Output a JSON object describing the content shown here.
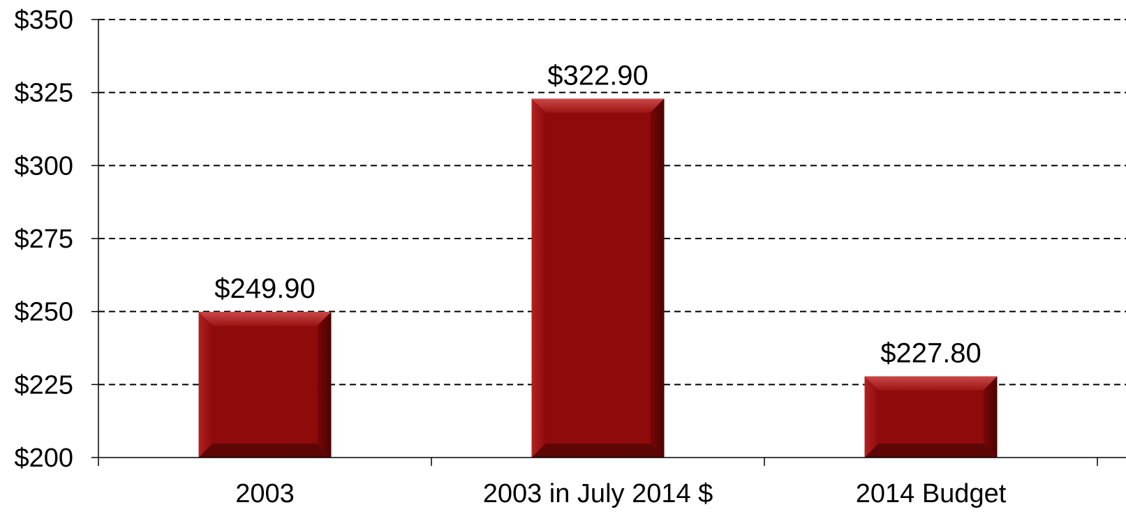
{
  "chart_data": {
    "type": "bar",
    "categories": [
      "2003",
      "2003 in July 2014 $",
      "2014 Budget"
    ],
    "values": [
      249.9,
      322.9,
      227.8
    ],
    "data_labels": [
      "$249.90",
      "$322.90",
      "$227.80"
    ],
    "ylim": [
      200,
      350
    ],
    "yticks": [
      200,
      225,
      250,
      275,
      300,
      325,
      350
    ],
    "ytick_labels": [
      "$200",
      "$225",
      "$250",
      "$275",
      "$300",
      "$325",
      "$350"
    ],
    "grid": true,
    "bar_color": "#8f0a0b"
  }
}
